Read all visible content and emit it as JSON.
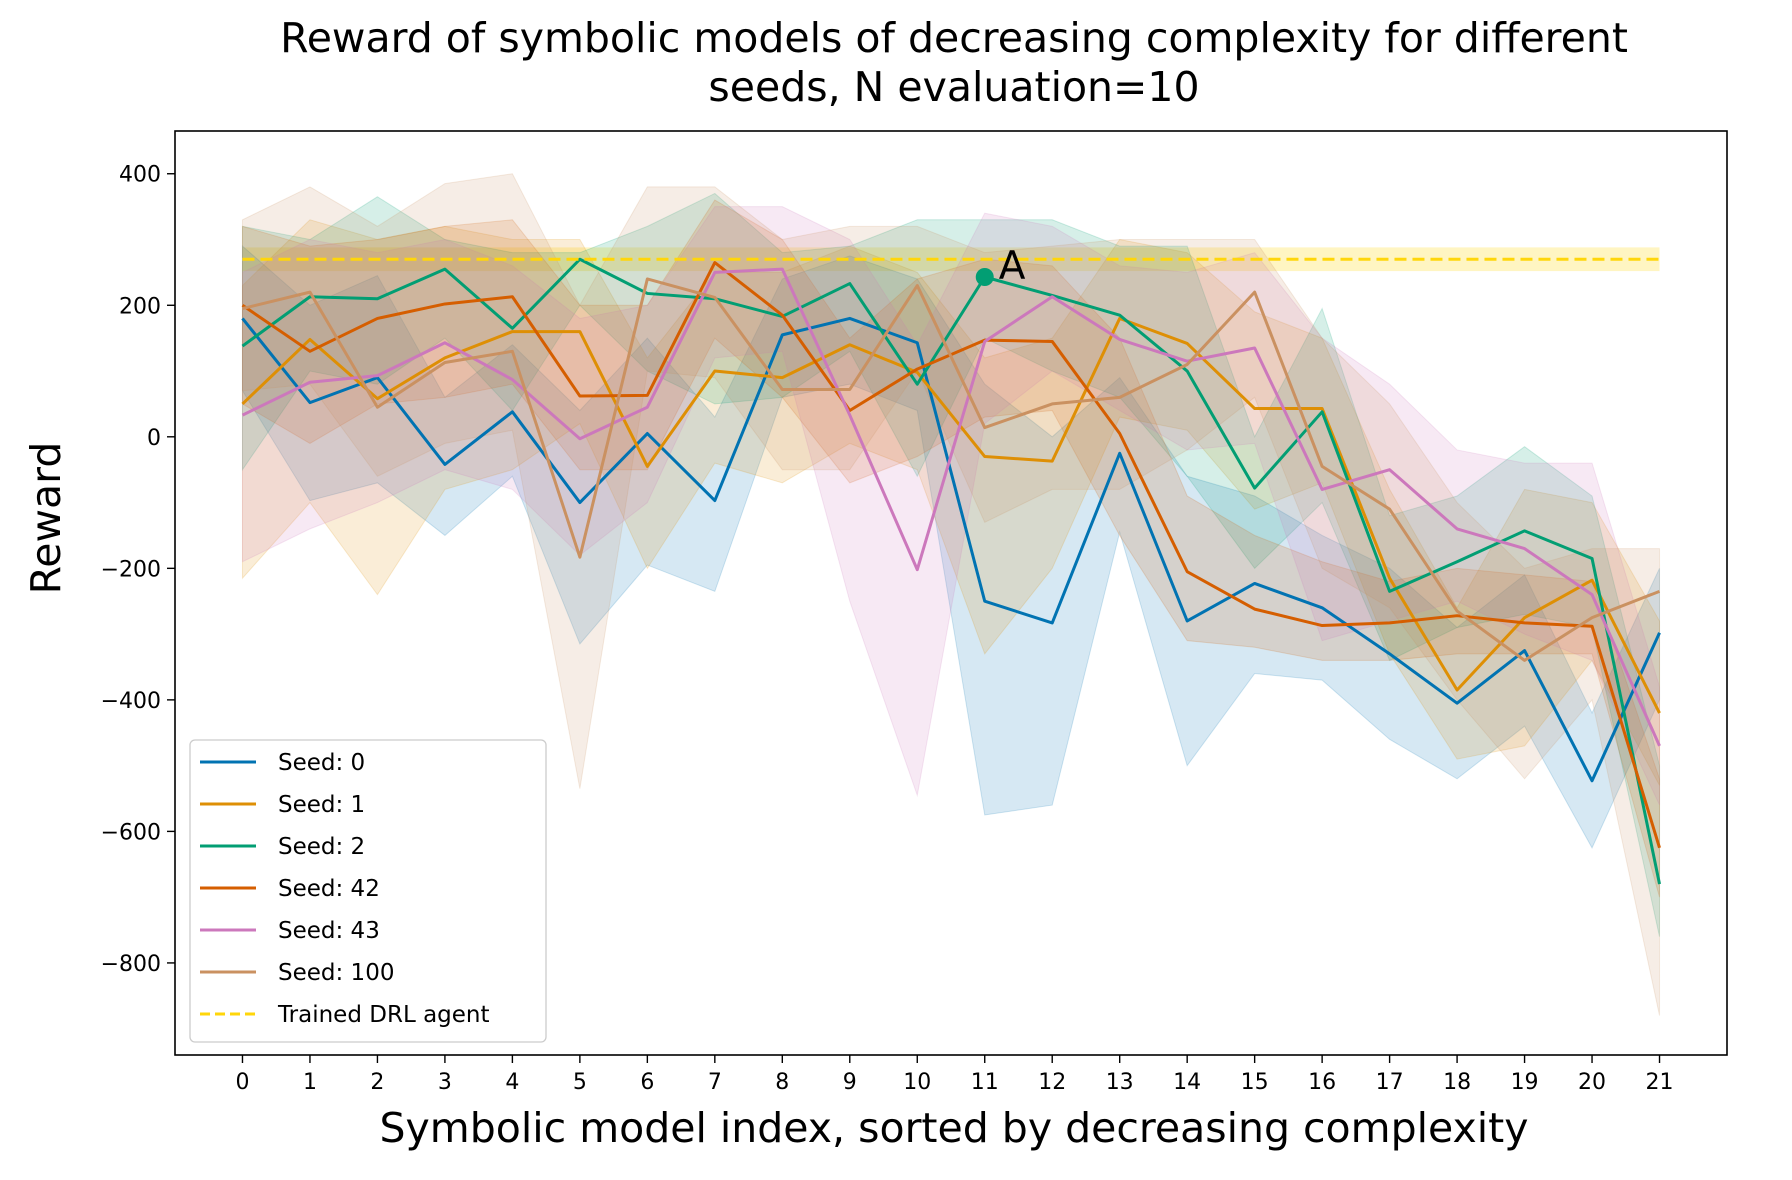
{
  "chart_data": {
    "type": "line",
    "title_line1": "Reward of symbolic models of decreasing complexity for different",
    "title_line2": "seeds, N evaluation=10",
    "xlabel": "Symbolic model index, sorted by decreasing complexity",
    "ylabel": "Reward",
    "xlim": [
      -1,
      22
    ],
    "ylim": [
      -940,
      465
    ],
    "x": [
      0,
      1,
      2,
      3,
      4,
      5,
      6,
      7,
      8,
      9,
      10,
      11,
      12,
      13,
      14,
      15,
      16,
      17,
      18,
      19,
      20,
      21
    ],
    "xticks": [
      "0",
      "1",
      "2",
      "3",
      "4",
      "5",
      "6",
      "7",
      "8",
      "9",
      "10",
      "11",
      "12",
      "13",
      "14",
      "15",
      "16",
      "17",
      "18",
      "19",
      "20",
      "21"
    ],
    "yticks": [
      400,
      200,
      0,
      -200,
      -400,
      -600,
      -800
    ],
    "ytick_labels": [
      "400",
      "200",
      "0",
      "−200",
      "−400",
      "−600",
      "−800"
    ],
    "grid": false,
    "legend_position": "lower-left",
    "series": [
      {
        "name": "Seed: 0",
        "color": "#0173b2",
        "values": [
          180,
          52,
          90,
          -42,
          38,
          -100,
          5,
          -97,
          155,
          180,
          143,
          -250,
          -283,
          -25,
          -280,
          -223,
          -260,
          -330,
          -405,
          -325,
          -523,
          -298
        ],
        "lower": [
          70,
          -97,
          -70,
          -150,
          -60,
          -315,
          -195,
          -235,
          60,
          80,
          40,
          -575,
          -560,
          -145,
          -500,
          -360,
          -370,
          -460,
          -520,
          -440,
          -625,
          -400
        ],
        "upper": [
          290,
          200,
          245,
          60,
          140,
          40,
          150,
          30,
          240,
          275,
          240,
          80,
          0,
          90,
          -60,
          -90,
          -150,
          -200,
          -290,
          -210,
          -420,
          -200
        ]
      },
      {
        "name": "Seed: 1",
        "color": "#de8f05",
        "values": [
          50,
          148,
          58,
          120,
          160,
          160,
          -45,
          100,
          90,
          140,
          98,
          -30,
          -37,
          180,
          142,
          43,
          43,
          -215,
          -385,
          -275,
          -218,
          -420
        ],
        "lower": [
          -215,
          -100,
          -240,
          -80,
          -50,
          20,
          -200,
          -40,
          -70,
          -10,
          -50,
          -330,
          -200,
          30,
          10,
          -110,
          -70,
          -330,
          -490,
          -470,
          -340,
          -530
        ],
        "upper": [
          230,
          330,
          300,
          320,
          300,
          300,
          120,
          250,
          250,
          290,
          250,
          120,
          150,
          300,
          280,
          190,
          150,
          -80,
          -260,
          -80,
          -100,
          -280
        ]
      },
      {
        "name": "Seed: 2",
        "color": "#029e73",
        "values": [
          138,
          213,
          210,
          255,
          165,
          270,
          218,
          210,
          183,
          233,
          80,
          243,
          215,
          185,
          100,
          -78,
          38,
          -235,
          -190,
          -143,
          -185,
          -680
        ],
        "lower": [
          -50,
          100,
          80,
          150,
          40,
          200,
          100,
          50,
          60,
          130,
          -60,
          150,
          100,
          60,
          -60,
          -200,
          -100,
          -340,
          -290,
          -270,
          -290,
          -760
        ],
        "upper": [
          320,
          300,
          365,
          300,
          280,
          280,
          320,
          370,
          280,
          290,
          330,
          330,
          330,
          290,
          290,
          0,
          195,
          -120,
          -90,
          -15,
          -90,
          -500
        ]
      },
      {
        "name": "Seed: 42",
        "color": "#d55e00",
        "values": [
          200,
          130,
          180,
          202,
          213,
          62,
          63,
          265,
          185,
          40,
          103,
          147,
          145,
          5,
          -205,
          -262,
          -287,
          -283,
          -272,
          -283,
          -288,
          -625
        ],
        "lower": [
          50,
          -10,
          50,
          60,
          80,
          -50,
          -50,
          150,
          60,
          -70,
          -30,
          30,
          40,
          -150,
          -310,
          -320,
          -340,
          -340,
          -330,
          -330,
          -330,
          -700
        ],
        "upper": [
          320,
          290,
          300,
          320,
          330,
          200,
          200,
          360,
          300,
          150,
          240,
          270,
          260,
          150,
          -90,
          -150,
          -190,
          -220,
          -200,
          -210,
          -220,
          -520
        ]
      },
      {
        "name": "Seed: 43",
        "color": "#cc78bc",
        "values": [
          33,
          83,
          93,
          143,
          87,
          -3,
          45,
          250,
          255,
          33,
          -202,
          145,
          213,
          148,
          115,
          135,
          -80,
          -50,
          -140,
          -170,
          -240,
          -470
        ],
        "lower": [
          -190,
          -140,
          -100,
          -50,
          -80,
          -180,
          -100,
          120,
          130,
          -250,
          -545,
          20,
          100,
          40,
          -20,
          -10,
          -310,
          -280,
          -250,
          -300,
          -340,
          -560
        ],
        "upper": [
          250,
          300,
          280,
          300,
          260,
          180,
          200,
          350,
          350,
          300,
          140,
          340,
          320,
          260,
          250,
          280,
          150,
          80,
          -20,
          -40,
          -40,
          -380
        ]
      },
      {
        "name": "Seed: 100",
        "color": "#ca9161",
        "values": [
          195,
          220,
          45,
          113,
          130,
          -183,
          240,
          212,
          72,
          72,
          230,
          14,
          50,
          60,
          110,
          220,
          -45,
          -110,
          -265,
          -340,
          -275,
          -235
        ],
        "lower": [
          70,
          80,
          -60,
          -10,
          10,
          -535,
          100,
          90,
          -50,
          -50,
          100,
          -130,
          -80,
          -80,
          -20,
          60,
          -200,
          -260,
          -400,
          -520,
          -400,
          -880
        ],
        "upper": [
          330,
          380,
          320,
          385,
          400,
          200,
          380,
          380,
          300,
          320,
          320,
          280,
          290,
          300,
          300,
          300,
          150,
          50,
          -100,
          -200,
          -170,
          -170
        ]
      }
    ],
    "baseline": {
      "name": "Trained DRL agent",
      "color": "#ffd60a",
      "value": 270,
      "lower": 252,
      "upper": 288
    },
    "annotation": {
      "label": "A",
      "x": 11,
      "y": 243,
      "color": "#029e73"
    }
  }
}
